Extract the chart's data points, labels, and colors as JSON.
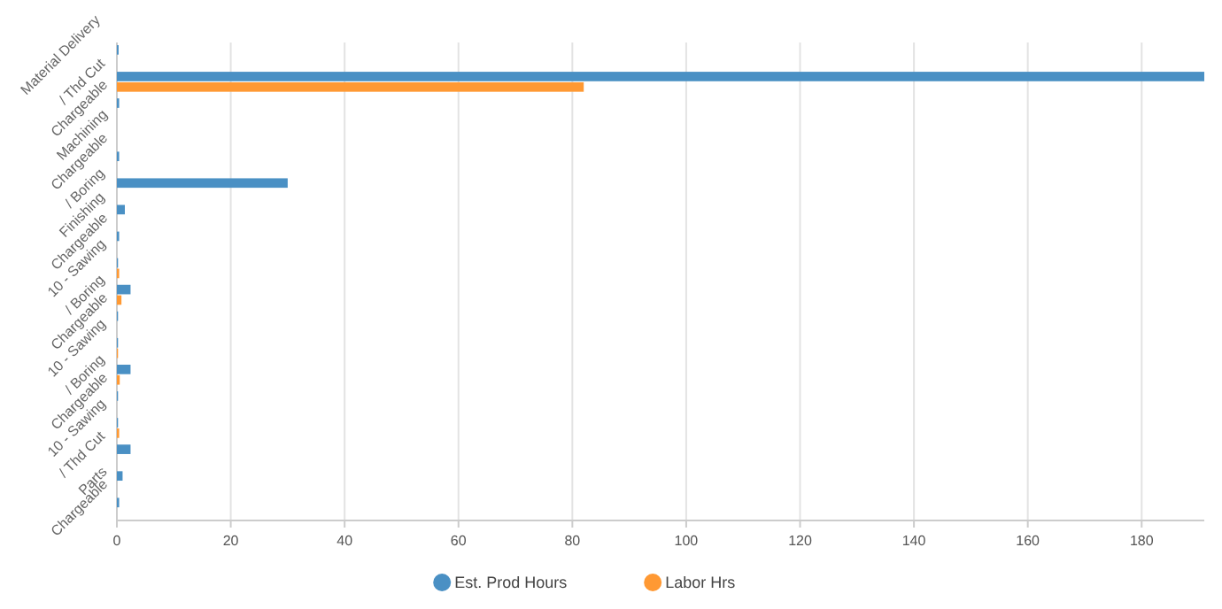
{
  "chart_data": {
    "type": "bar",
    "orientation": "horizontal",
    "categories": [
      "Material Delivery",
      "/ Thd Cut",
      "Chargeable",
      "Machining",
      "Chargeable",
      "/ Boring",
      "Finishing",
      "Chargeable",
      "10 - Sawing",
      "/ Boring",
      "Chargeable",
      "10 - Sawing",
      "/ Boring",
      "Chargeable",
      "10 - Sawing",
      "/ Thd Cut",
      "Parts",
      "Chargeable"
    ],
    "series": [
      {
        "name": "Est. Prod Hours",
        "color": "#4a90c4",
        "values": [
          0.3,
          191,
          0.4,
          0,
          0.4,
          30,
          1.4,
          0.4,
          0.2,
          2.4,
          0.2,
          0.2,
          2.4,
          0.2,
          0.2,
          2.4,
          1,
          0.4
        ]
      },
      {
        "name": "Labor Hrs",
        "color": "#ff9933",
        "values": [
          0,
          82,
          0,
          0,
          0,
          0,
          0,
          0,
          0.4,
          0.8,
          0,
          0.2,
          0.5,
          0,
          0.4,
          0,
          0,
          0
        ]
      }
    ],
    "xlim": [
      0,
      191
    ],
    "xticks": [
      0,
      20,
      40,
      60,
      80,
      100,
      120,
      140,
      160,
      180
    ],
    "grid": "x",
    "legend": "bottom"
  }
}
